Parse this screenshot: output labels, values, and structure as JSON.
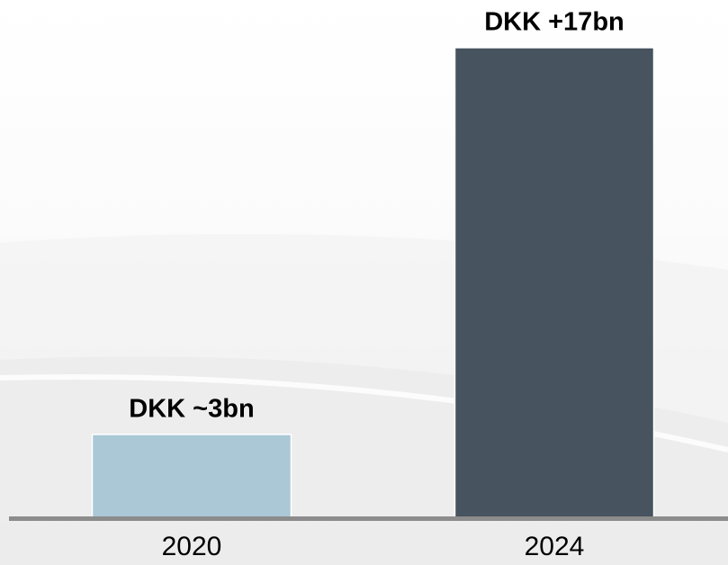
{
  "chart_data": {
    "type": "bar",
    "categories": [
      "2020",
      "2024"
    ],
    "values": [
      3,
      17
    ],
    "value_labels": [
      "DKK ~3bn",
      "DKK +17bn"
    ],
    "colors": [
      "#aac8d6",
      "#47535e"
    ]
  }
}
